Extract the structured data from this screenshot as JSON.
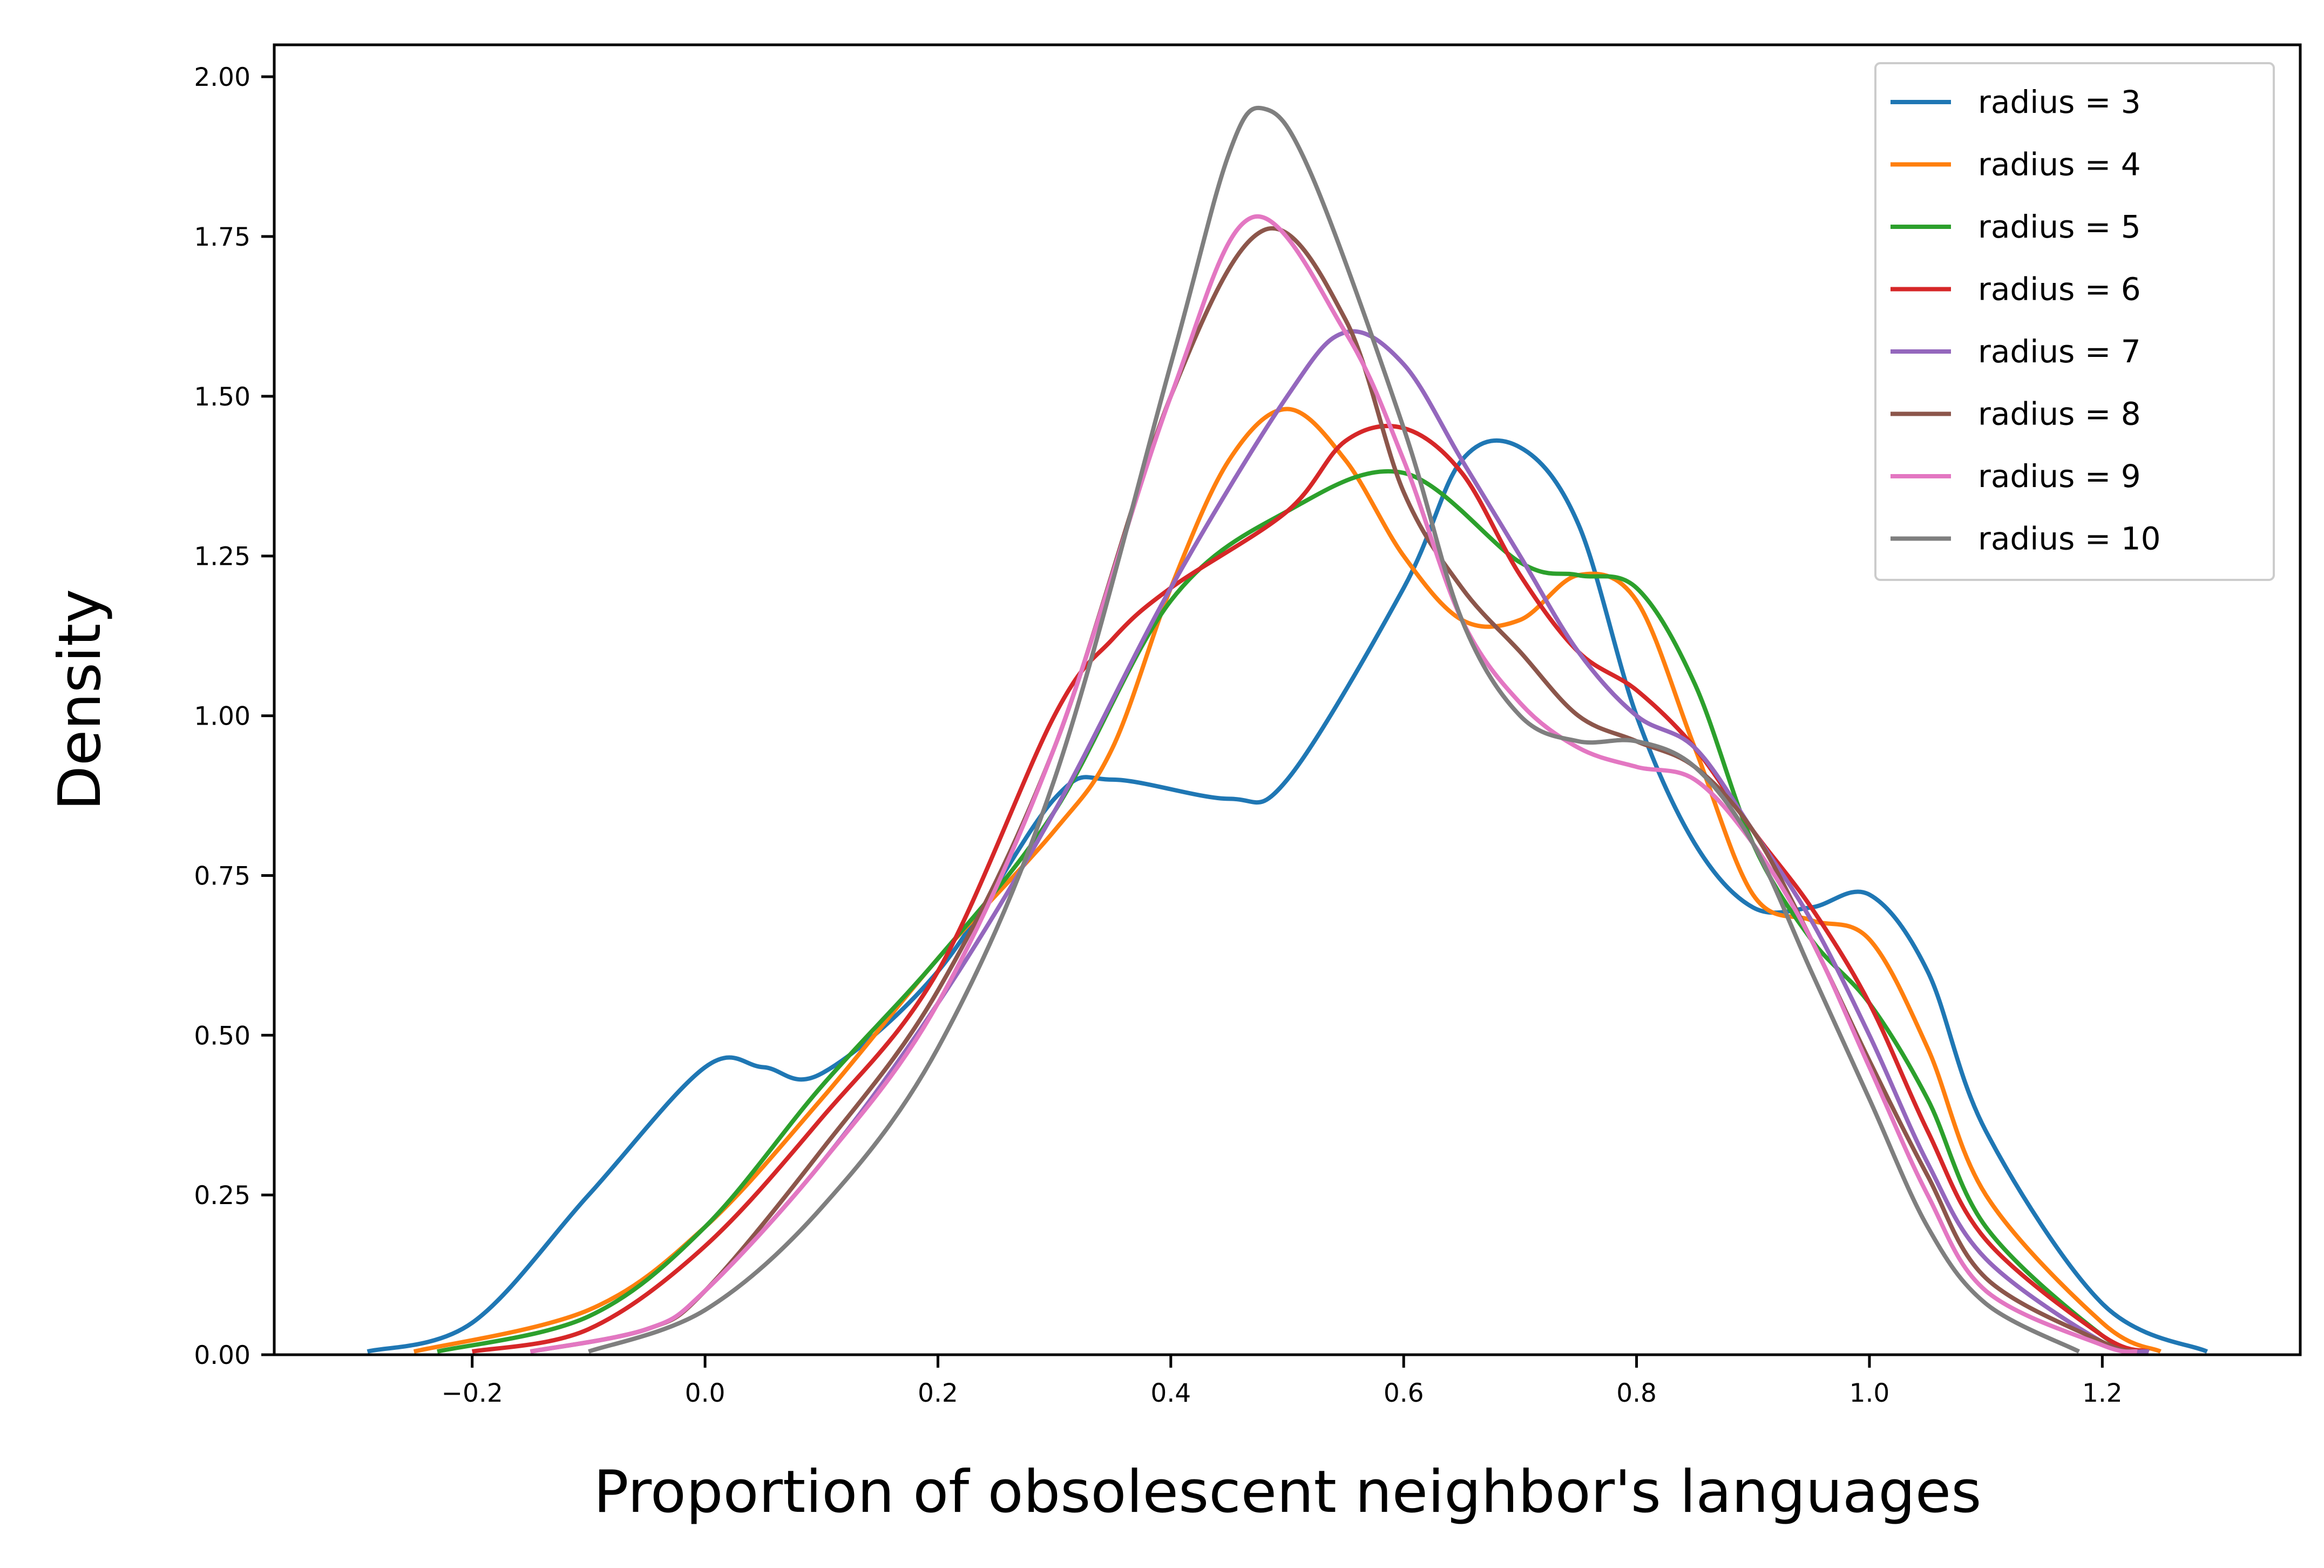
{
  "chart_data": {
    "type": "line",
    "title": "",
    "xlabel": "Proportion of obsolescent neighbor's languages",
    "ylabel": "Density",
    "xlim": [
      -0.37,
      1.37
    ],
    "ylim": [
      0.0,
      2.05
    ],
    "xticks": [
      -0.2,
      0.0,
      0.2,
      0.4,
      0.6,
      0.8,
      1.0,
      1.2
    ],
    "xtick_labels": [
      "−0.2",
      "0.0",
      "0.2",
      "0.4",
      "0.6",
      "0.8",
      "1.0",
      "1.2"
    ],
    "yticks": [
      0.0,
      0.25,
      0.5,
      0.75,
      1.0,
      1.25,
      1.5,
      1.75,
      2.0
    ],
    "ytick_labels": [
      "0.00",
      "0.25",
      "0.50",
      "0.75",
      "1.00",
      "1.25",
      "1.50",
      "1.75",
      "2.00"
    ],
    "grid": false,
    "legend_position": "top-right",
    "series": [
      {
        "name": "radius = 3",
        "color": "#1f77b4",
        "points": [
          [
            -0.29,
            0.005
          ],
          [
            -0.2,
            0.05
          ],
          [
            -0.1,
            0.25
          ],
          [
            0.0,
            0.45
          ],
          [
            0.05,
            0.45
          ],
          [
            0.1,
            0.44
          ],
          [
            0.2,
            0.6
          ],
          [
            0.3,
            0.87
          ],
          [
            0.35,
            0.9
          ],
          [
            0.45,
            0.87
          ],
          [
            0.5,
            0.9
          ],
          [
            0.6,
            1.2
          ],
          [
            0.65,
            1.4
          ],
          [
            0.7,
            1.42
          ],
          [
            0.75,
            1.3
          ],
          [
            0.8,
            1.0
          ],
          [
            0.85,
            0.8
          ],
          [
            0.9,
            0.7
          ],
          [
            0.95,
            0.7
          ],
          [
            1.0,
            0.72
          ],
          [
            1.05,
            0.6
          ],
          [
            1.1,
            0.35
          ],
          [
            1.2,
            0.08
          ],
          [
            1.29,
            0.005
          ]
        ]
      },
      {
        "name": "radius = 4",
        "color": "#ff7f0e",
        "points": [
          [
            -0.25,
            0.005
          ],
          [
            -0.1,
            0.07
          ],
          [
            0.0,
            0.2
          ],
          [
            0.1,
            0.4
          ],
          [
            0.2,
            0.62
          ],
          [
            0.3,
            0.82
          ],
          [
            0.35,
            0.95
          ],
          [
            0.4,
            1.2
          ],
          [
            0.45,
            1.4
          ],
          [
            0.5,
            1.48
          ],
          [
            0.55,
            1.4
          ],
          [
            0.6,
            1.25
          ],
          [
            0.65,
            1.15
          ],
          [
            0.7,
            1.15
          ],
          [
            0.75,
            1.22
          ],
          [
            0.8,
            1.18
          ],
          [
            0.85,
            0.95
          ],
          [
            0.9,
            0.72
          ],
          [
            0.95,
            0.68
          ],
          [
            1.0,
            0.65
          ],
          [
            1.05,
            0.48
          ],
          [
            1.1,
            0.25
          ],
          [
            1.2,
            0.05
          ],
          [
            1.25,
            0.005
          ]
        ]
      },
      {
        "name": "radius = 5",
        "color": "#2ca02c",
        "points": [
          [
            -0.23,
            0.005
          ],
          [
            -0.1,
            0.06
          ],
          [
            0.0,
            0.2
          ],
          [
            0.1,
            0.42
          ],
          [
            0.2,
            0.62
          ],
          [
            0.3,
            0.85
          ],
          [
            0.4,
            1.18
          ],
          [
            0.5,
            1.32
          ],
          [
            0.6,
            1.38
          ],
          [
            0.7,
            1.24
          ],
          [
            0.75,
            1.22
          ],
          [
            0.8,
            1.2
          ],
          [
            0.85,
            1.05
          ],
          [
            0.9,
            0.8
          ],
          [
            0.95,
            0.65
          ],
          [
            1.0,
            0.55
          ],
          [
            1.05,
            0.4
          ],
          [
            1.1,
            0.2
          ],
          [
            1.2,
            0.03
          ],
          [
            1.24,
            0.005
          ]
        ]
      },
      {
        "name": "radius = 6",
        "color": "#d62728",
        "points": [
          [
            -0.2,
            0.005
          ],
          [
            -0.1,
            0.04
          ],
          [
            0.0,
            0.17
          ],
          [
            0.1,
            0.37
          ],
          [
            0.2,
            0.6
          ],
          [
            0.3,
            1.0
          ],
          [
            0.35,
            1.12
          ],
          [
            0.4,
            1.2
          ],
          [
            0.5,
            1.32
          ],
          [
            0.55,
            1.43
          ],
          [
            0.6,
            1.45
          ],
          [
            0.65,
            1.38
          ],
          [
            0.7,
            1.22
          ],
          [
            0.75,
            1.1
          ],
          [
            0.8,
            1.04
          ],
          [
            0.85,
            0.95
          ],
          [
            0.9,
            0.82
          ],
          [
            0.95,
            0.7
          ],
          [
            1.0,
            0.55
          ],
          [
            1.05,
            0.35
          ],
          [
            1.1,
            0.18
          ],
          [
            1.2,
            0.03
          ],
          [
            1.24,
            0.005
          ]
        ]
      },
      {
        "name": "radius = 7",
        "color": "#9467bd",
        "points": [
          [
            -0.15,
            0.005
          ],
          [
            -0.05,
            0.04
          ],
          [
            0.0,
            0.1
          ],
          [
            0.1,
            0.3
          ],
          [
            0.2,
            0.55
          ],
          [
            0.3,
            0.85
          ],
          [
            0.4,
            1.2
          ],
          [
            0.5,
            1.5
          ],
          [
            0.55,
            1.6
          ],
          [
            0.6,
            1.55
          ],
          [
            0.65,
            1.4
          ],
          [
            0.7,
            1.25
          ],
          [
            0.75,
            1.1
          ],
          [
            0.8,
            1.0
          ],
          [
            0.85,
            0.95
          ],
          [
            0.9,
            0.82
          ],
          [
            0.95,
            0.68
          ],
          [
            1.0,
            0.5
          ],
          [
            1.05,
            0.3
          ],
          [
            1.1,
            0.15
          ],
          [
            1.2,
            0.02
          ],
          [
            1.24,
            0.005
          ]
        ]
      },
      {
        "name": "radius = 8",
        "color": "#8c564b",
        "points": [
          [
            -0.15,
            0.005
          ],
          [
            -0.05,
            0.04
          ],
          [
            0.0,
            0.1
          ],
          [
            0.1,
            0.32
          ],
          [
            0.2,
            0.57
          ],
          [
            0.3,
            0.95
          ],
          [
            0.4,
            1.5
          ],
          [
            0.48,
            1.76
          ],
          [
            0.55,
            1.62
          ],
          [
            0.6,
            1.35
          ],
          [
            0.65,
            1.2
          ],
          [
            0.7,
            1.1
          ],
          [
            0.75,
            1.0
          ],
          [
            0.8,
            0.96
          ],
          [
            0.85,
            0.92
          ],
          [
            0.9,
            0.82
          ],
          [
            0.95,
            0.65
          ],
          [
            1.0,
            0.46
          ],
          [
            1.05,
            0.28
          ],
          [
            1.1,
            0.12
          ],
          [
            1.2,
            0.02
          ],
          [
            1.23,
            0.005
          ]
        ]
      },
      {
        "name": "radius = 9",
        "color": "#e377c2",
        "points": [
          [
            -0.15,
            0.005
          ],
          [
            -0.05,
            0.04
          ],
          [
            0.0,
            0.1
          ],
          [
            0.1,
            0.3
          ],
          [
            0.2,
            0.55
          ],
          [
            0.3,
            0.95
          ],
          [
            0.4,
            1.5
          ],
          [
            0.47,
            1.78
          ],
          [
            0.55,
            1.6
          ],
          [
            0.6,
            1.4
          ],
          [
            0.65,
            1.15
          ],
          [
            0.7,
            1.02
          ],
          [
            0.75,
            0.95
          ],
          [
            0.8,
            0.92
          ],
          [
            0.85,
            0.9
          ],
          [
            0.9,
            0.8
          ],
          [
            0.95,
            0.65
          ],
          [
            1.0,
            0.45
          ],
          [
            1.05,
            0.25
          ],
          [
            1.1,
            0.1
          ],
          [
            1.2,
            0.015
          ],
          [
            1.23,
            0.005
          ]
        ]
      },
      {
        "name": "radius = 10",
        "color": "#7f7f7f",
        "points": [
          [
            -0.1,
            0.005
          ],
          [
            0.0,
            0.07
          ],
          [
            0.1,
            0.23
          ],
          [
            0.2,
            0.48
          ],
          [
            0.3,
            0.9
          ],
          [
            0.4,
            1.55
          ],
          [
            0.45,
            1.88
          ],
          [
            0.48,
            1.95
          ],
          [
            0.52,
            1.85
          ],
          [
            0.6,
            1.45
          ],
          [
            0.65,
            1.15
          ],
          [
            0.7,
            1.0
          ],
          [
            0.75,
            0.96
          ],
          [
            0.8,
            0.96
          ],
          [
            0.85,
            0.92
          ],
          [
            0.9,
            0.8
          ],
          [
            0.95,
            0.6
          ],
          [
            1.0,
            0.4
          ],
          [
            1.05,
            0.2
          ],
          [
            1.1,
            0.08
          ],
          [
            1.18,
            0.005
          ]
        ]
      }
    ]
  }
}
